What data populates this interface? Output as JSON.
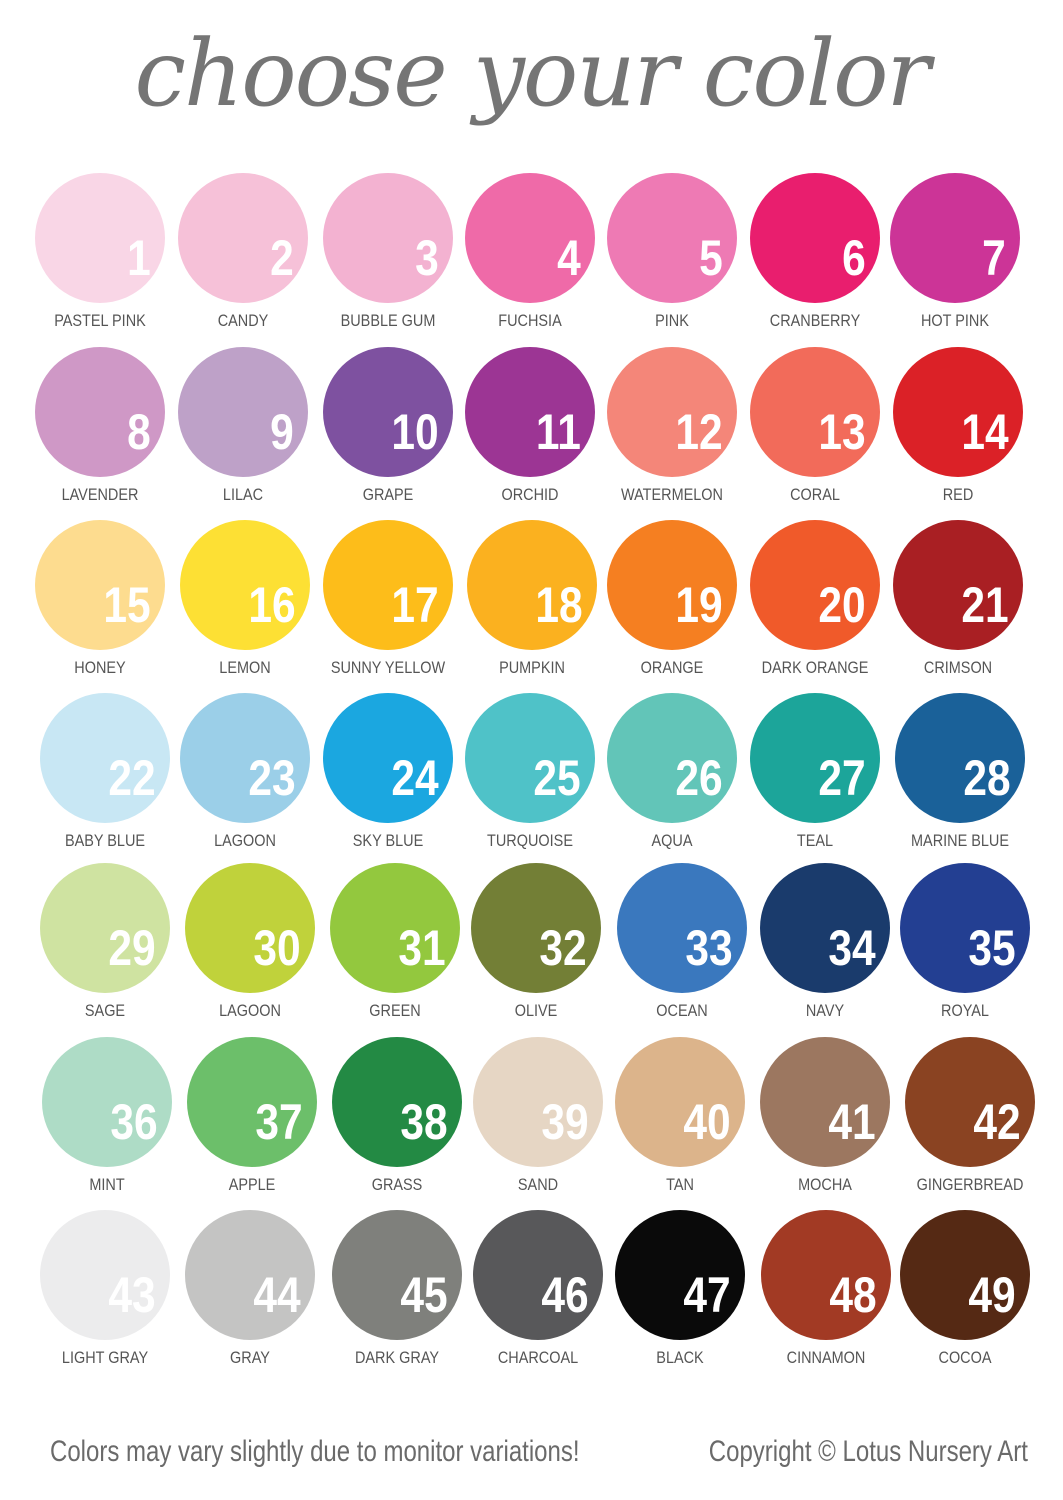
{
  "title": "choose your color",
  "swatches": [
    {
      "n": "1",
      "name": "PASTEL PINK",
      "color": "#f9d6e6"
    },
    {
      "n": "2",
      "name": "CANDY",
      "color": "#f6c1d8"
    },
    {
      "n": "3",
      "name": "BUBBLE GUM",
      "color": "#f3b2d1"
    },
    {
      "n": "4",
      "name": "FUCHSIA",
      "color": "#ef6aa8"
    },
    {
      "n": "5",
      "name": "PINK",
      "color": "#ee7ab4"
    },
    {
      "n": "6",
      "name": "CRANBERRY",
      "color": "#e91e6e"
    },
    {
      "n": "7",
      "name": "HOT PINK",
      "color": "#cc3497"
    },
    {
      "n": "8",
      "name": "LAVENDER",
      "color": "#cf98c6"
    },
    {
      "n": "9",
      "name": "LILAC",
      "color": "#bea1c8"
    },
    {
      "n": "10",
      "name": "GRAPE",
      "color": "#7e51a0"
    },
    {
      "n": "11",
      "name": "ORCHID",
      "color": "#9c3594"
    },
    {
      "n": "12",
      "name": "WATERMELON",
      "color": "#f48679"
    },
    {
      "n": "13",
      "name": "CORAL",
      "color": "#f26b5a"
    },
    {
      "n": "14",
      "name": "RED",
      "color": "#db2127"
    },
    {
      "n": "15",
      "name": "HONEY",
      "color": "#fddc8f"
    },
    {
      "n": "16",
      "name": "LEMON",
      "color": "#fde034"
    },
    {
      "n": "17",
      "name": "SUNNY YELLOW",
      "color": "#fdbd1a"
    },
    {
      "n": "18",
      "name": "PUMPKIN",
      "color": "#fbb11f"
    },
    {
      "n": "19",
      "name": "ORANGE",
      "color": "#f57f21"
    },
    {
      "n": "20",
      "name": "DARK ORANGE",
      "color": "#f05a2a"
    },
    {
      "n": "21",
      "name": "CRIMSON",
      "color": "#a91f23"
    },
    {
      "n": "22",
      "name": "BABY BLUE",
      "color": "#c8e7f4"
    },
    {
      "n": "23",
      "name": "LAGOON",
      "color": "#9bcfe8"
    },
    {
      "n": "24",
      "name": "SKY BLUE",
      "color": "#1ba7e0"
    },
    {
      "n": "25",
      "name": "TURQUOISE",
      "color": "#4fc2c8"
    },
    {
      "n": "26",
      "name": "AQUA",
      "color": "#62c5b8"
    },
    {
      "n": "27",
      "name": "TEAL",
      "color": "#1ca59a"
    },
    {
      "n": "28",
      "name": "MARINE BLUE",
      "color": "#1a6199"
    },
    {
      "n": "29",
      "name": "SAGE",
      "color": "#cfe3a1"
    },
    {
      "n": "30",
      "name": "LAGOON",
      "color": "#c0d23b"
    },
    {
      "n": "31",
      "name": "GREEN",
      "color": "#93c83e"
    },
    {
      "n": "32",
      "name": "OLIVE",
      "color": "#737f36"
    },
    {
      "n": "33",
      "name": "OCEAN",
      "color": "#3a78be"
    },
    {
      "n": "34",
      "name": "NAVY",
      "color": "#1a3b6c"
    },
    {
      "n": "35",
      "name": "ROYAL",
      "color": "#233f92"
    },
    {
      "n": "36",
      "name": "MINT",
      "color": "#aedcc6"
    },
    {
      "n": "37",
      "name": "APPLE",
      "color": "#6cbf6a"
    },
    {
      "n": "38",
      "name": "GRASS",
      "color": "#238a44"
    },
    {
      "n": "39",
      "name": "SAND",
      "color": "#e6d6c4"
    },
    {
      "n": "40",
      "name": "TAN",
      "color": "#dcb48b"
    },
    {
      "n": "41",
      "name": "MOCHA",
      "color": "#9c7760"
    },
    {
      "n": "42",
      "name": "GINGERBREAD",
      "color": "#8a4322"
    },
    {
      "n": "43",
      "name": "LIGHT GRAY",
      "color": "#ececed"
    },
    {
      "n": "44",
      "name": "GRAY",
      "color": "#c4c4c3"
    },
    {
      "n": "45",
      "name": "DARK GRAY",
      "color": "#7f807c"
    },
    {
      "n": "46",
      "name": "CHARCOAL",
      "color": "#58585a"
    },
    {
      "n": "47",
      "name": "BLACK",
      "color": "#0a0a0a"
    },
    {
      "n": "48",
      "name": "CINNAMON",
      "color": "#a23a24"
    },
    {
      "n": "49",
      "name": "COCOA",
      "color": "#552914"
    }
  ],
  "footer": {
    "disclaimer": "Colors may vary slightly due to monitor variations!",
    "copyright": "Copyright © Lotus Nursery Art"
  }
}
